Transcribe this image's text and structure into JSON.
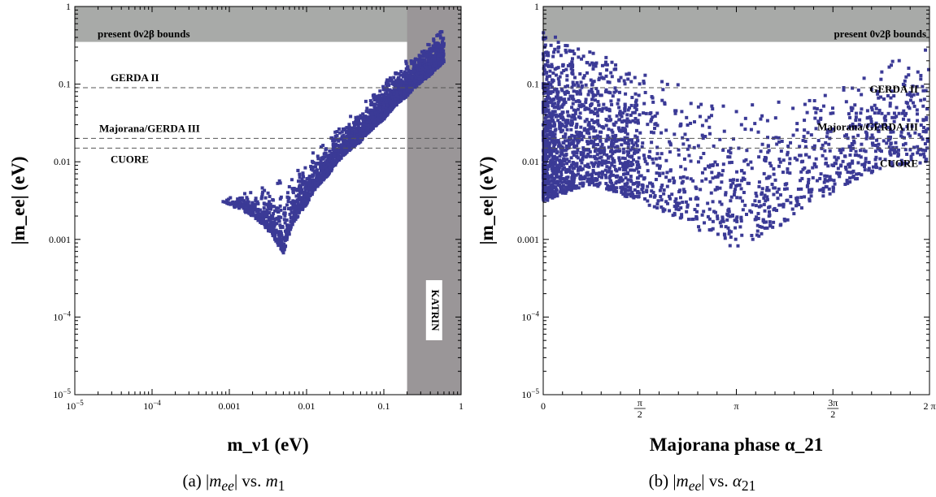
{
  "chart_data": [
    {
      "type": "scatter",
      "panel": "a",
      "caption": "(a) |m_ee| vs. m_1",
      "xlabel": "m_ν1 (eV)",
      "ylabel": "|m_ee| (eV)",
      "xscale": "log",
      "yscale": "log",
      "xlim": [
        1e-05,
        1
      ],
      "ylim": [
        1e-05,
        1
      ],
      "x_tick_labels": [
        "10^-5",
        "10^-4",
        "0.001",
        "0.01",
        "0.1",
        "1"
      ],
      "y_tick_labels": [
        "10^-5",
        "10^-4",
        "0.001",
        "0.01",
        "0.1",
        "1"
      ],
      "grid": false,
      "excluded_regions": [
        {
          "label": "present 0ν2β bounds",
          "y_min": 0.35,
          "y_max": 1,
          "color": "#a8aaa8"
        },
        {
          "label": "KATRIN",
          "x_min": 0.2,
          "x_max": 1,
          "color": "#9a9698"
        }
      ],
      "reference_lines": [
        {
          "label": "GERDA II",
          "y": 0.09
        },
        {
          "label": "Majorana/GERDA III",
          "y": 0.02
        },
        {
          "label": "CUORE",
          "y": 0.015
        }
      ],
      "series": [
        {
          "color": "#3b3a96",
          "band": {
            "x": [
              0.0008,
              0.002,
              0.005,
              0.01,
              0.02,
              0.05,
              0.1,
              0.2,
              0.4,
              0.6
            ],
            "upper": [
              0.0034,
              0.0045,
              0.0075,
              0.012,
              0.023,
              0.055,
              0.11,
              0.22,
              0.42,
              0.6
            ],
            "lower": [
              0.003,
              0.002,
              0.0006,
              0.0028,
              0.007,
              0.018,
              0.035,
              0.07,
              0.13,
              0.19
            ]
          }
        }
      ]
    },
    {
      "type": "scatter",
      "panel": "b",
      "caption": "(b) |m_ee| vs. α_21",
      "xlabel": "Majorana phase α_21",
      "ylabel": "|m_ee| (eV)",
      "xscale": "linear",
      "yscale": "log",
      "xlim_radians": [
        0,
        6.2832
      ],
      "ylim": [
        1e-05,
        1
      ],
      "x_tick_labels": [
        "0",
        "π/2",
        "π",
        "3π/2",
        "2 π"
      ],
      "y_tick_labels": [
        "10^-5",
        "10^-4",
        "0.001",
        "0.01",
        "0.1",
        "1"
      ],
      "grid": false,
      "excluded_regions": [
        {
          "label": "present 0ν2β bounds",
          "y_min": 0.35,
          "y_max": 1,
          "color": "#a8aaa8"
        }
      ],
      "reference_lines": [
        {
          "label": "GERDA II",
          "y": 0.09
        },
        {
          "label": "Majorana/GERDA III",
          "y": 0.02
        },
        {
          "label": "CUORE",
          "y": 0.015
        }
      ],
      "series": [
        {
          "color": "#3b3a96",
          "envelope": {
            "alpha_over_pi": [
              0,
              0.25,
              0.5,
              0.75,
              1.0,
              1.25,
              1.5,
              1.75,
              2.0
            ],
            "upper": [
              0.5,
              0.3,
              0.18,
              0.1,
              0.06,
              0.07,
              0.12,
              0.2,
              0.3
            ],
            "lower": [
              0.003,
              0.005,
              0.003,
              0.0015,
              0.0007,
              0.0015,
              0.004,
              0.008,
              0.01
            ]
          }
        }
      ]
    }
  ]
}
